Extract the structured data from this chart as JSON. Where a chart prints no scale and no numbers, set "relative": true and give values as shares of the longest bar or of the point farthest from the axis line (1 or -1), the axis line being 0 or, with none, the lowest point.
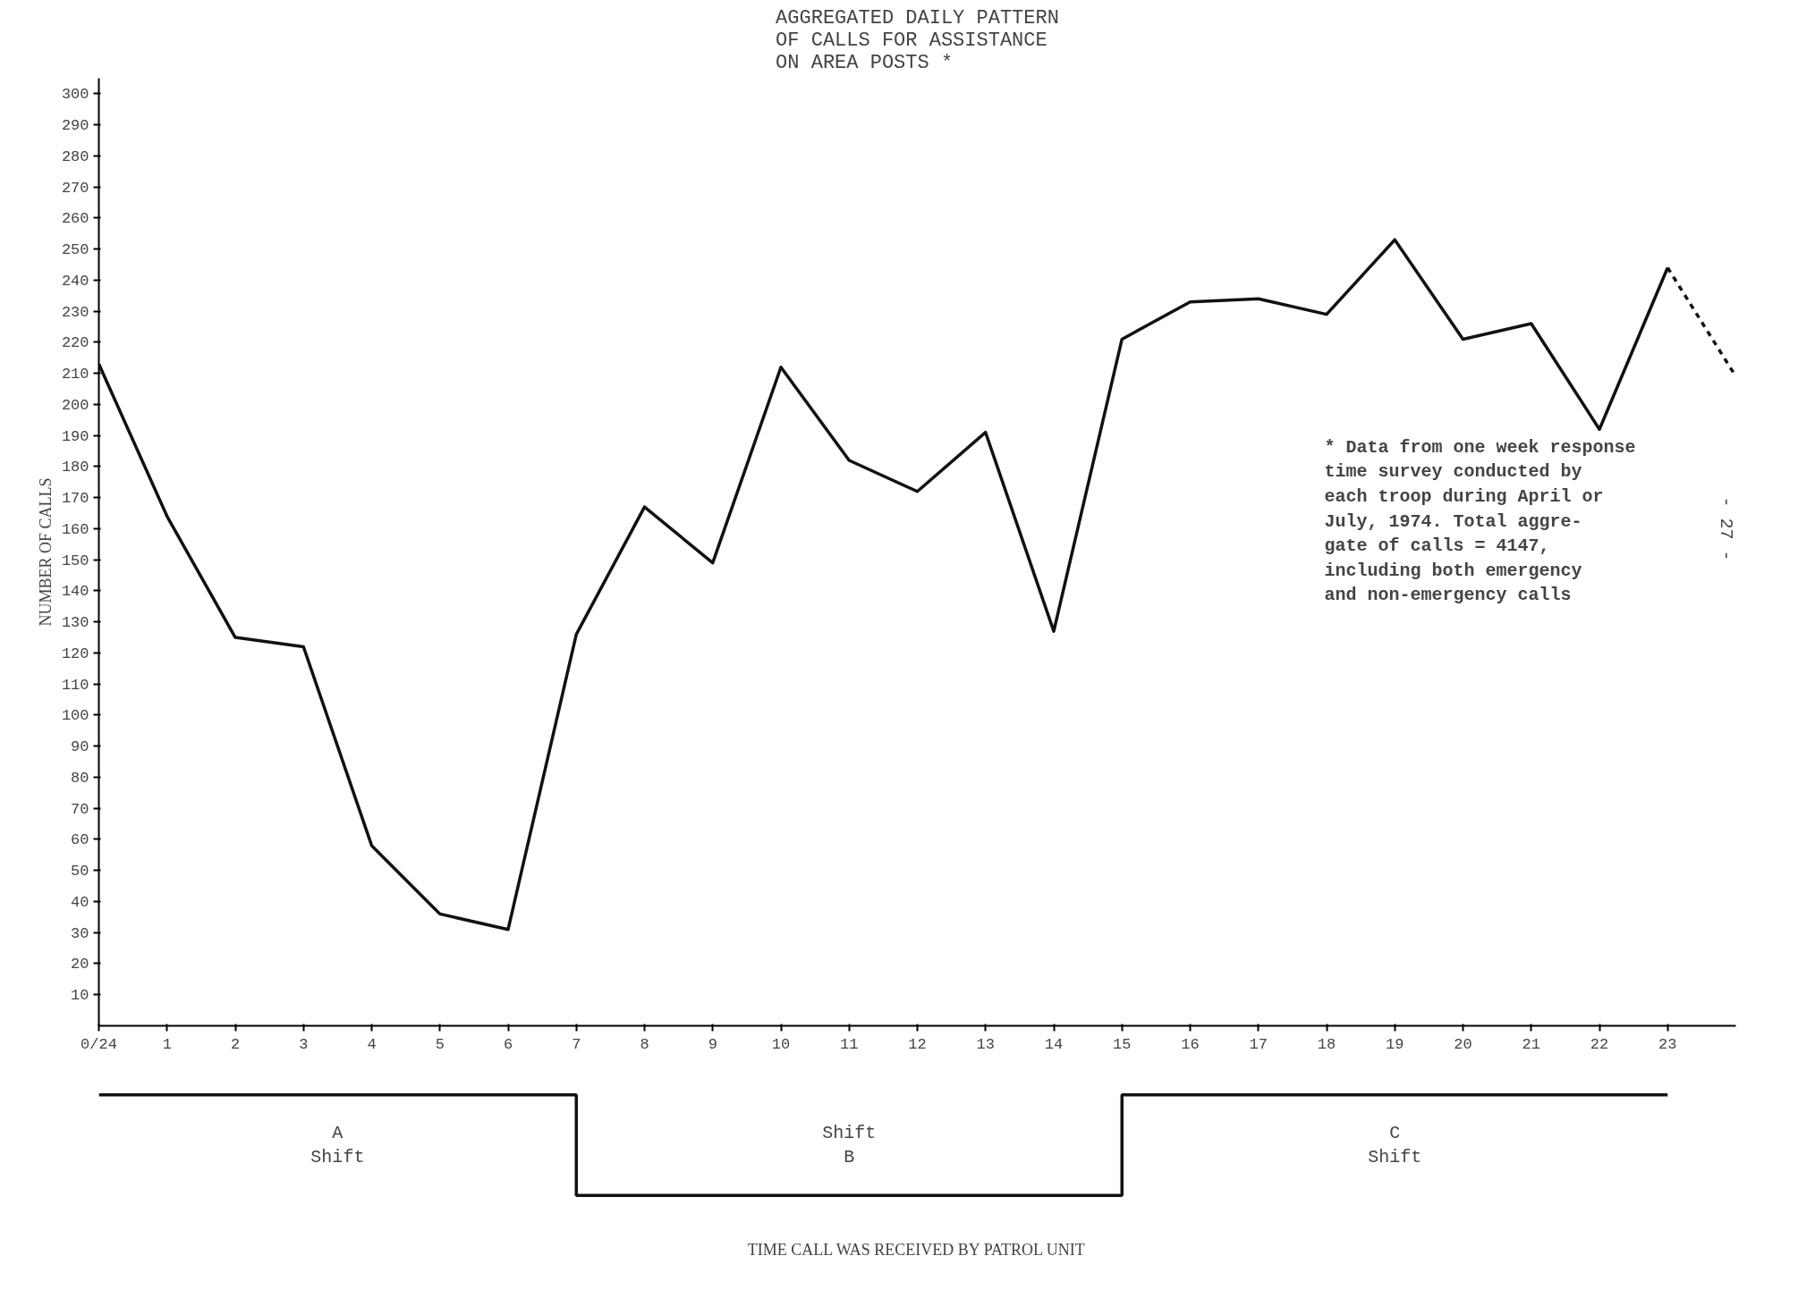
{
  "chart_data": [
    {
      "type": "line",
      "title": "AGGREGATED DAILY PATTERN\nOF CALLS FOR ASSISTANCE\nON AREA POSTS *",
      "ylabel": "NUMBER OF CALLS",
      "xlim": [
        0,
        24
      ],
      "xticks": [
        {
          "value": 0,
          "label": "0/24"
        },
        1,
        2,
        3,
        4,
        5,
        6,
        7,
        8,
        9,
        10,
        11,
        12,
        13,
        14,
        15,
        16,
        17,
        18,
        19,
        20,
        21,
        22,
        23
      ],
      "ylim": [
        0,
        305
      ],
      "yticks": [
        10,
        20,
        30,
        40,
        50,
        60,
        70,
        80,
        90,
        100,
        110,
        120,
        130,
        140,
        150,
        160,
        170,
        180,
        190,
        200,
        210,
        220,
        230,
        240,
        250,
        260,
        270,
        280,
        290,
        300
      ],
      "grid": false,
      "series": [
        {
          "color": "#111111",
          "x": [
            0,
            1,
            2,
            3,
            4,
            5,
            6,
            7,
            8,
            9,
            10,
            11,
            12,
            13,
            14,
            15,
            16,
            17,
            18,
            19,
            20,
            21,
            22,
            23
          ],
          "values": [
            213,
            164,
            125,
            122,
            58,
            36,
            31,
            126,
            167,
            149,
            212,
            182,
            172,
            191,
            127,
            221,
            233,
            234,
            229,
            253,
            221,
            226,
            192,
            244
          ]
        },
        {
          "color": "#111111",
          "x": [
            23,
            24
          ],
          "values": [
            244,
            209
          ],
          "line_style": "dashed"
        }
      ],
      "annotations": [
        "* Data from one week response\n  time survey conducted by\n  each troop during April or\n  July, 1974.  Total aggre-\n  gate of calls = 4147,\n  including both emergency\n  and non-emergency calls",
        "- 27 -"
      ]
    },
    {
      "type": "step",
      "relative": true,
      "categories": [
        null,
        null,
        null,
        null,
        null,
        null,
        null,
        null,
        null,
        null,
        null,
        null,
        null,
        null,
        null,
        null,
        null,
        null,
        null,
        null,
        null,
        null,
        null,
        null
      ],
      "values": [
        1,
        1,
        1,
        1,
        1,
        1,
        1,
        0,
        0,
        0,
        0,
        0,
        0,
        0,
        0,
        1,
        1,
        1,
        1,
        1,
        1,
        1,
        1,
        1
      ],
      "color": "#111111",
      "tick_labels": false,
      "xlabel": "TIME CALL WAS RECEIVED BY PATROL UNIT",
      "annotations": [
        "A\nShift",
        "Shift\nB",
        "C\nShift"
      ]
    }
  ]
}
